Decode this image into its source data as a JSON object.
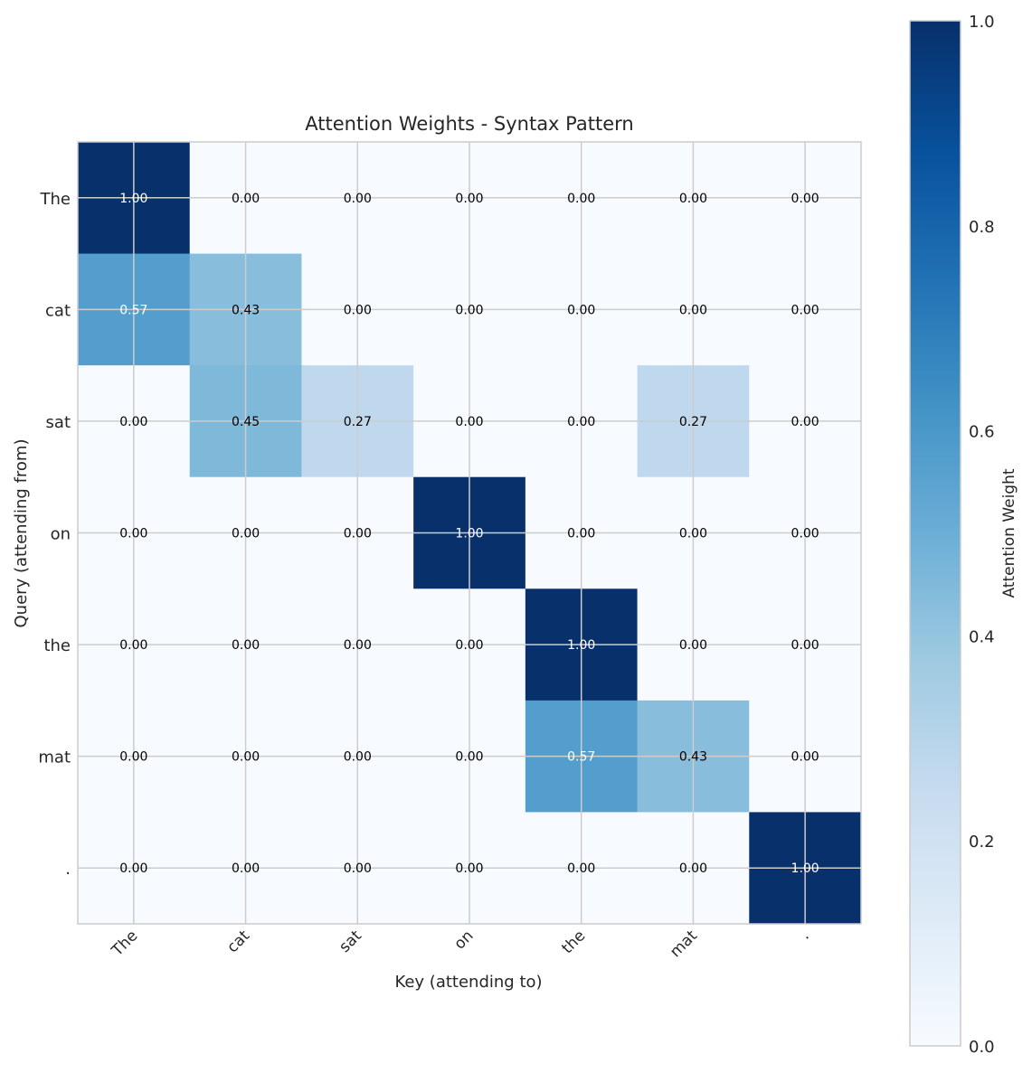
{
  "chart_data": {
    "type": "heatmap",
    "title": "Attention Weights - Syntax Pattern",
    "xlabel": "Key (attending to)",
    "ylabel": "Query (attending from)",
    "x_categories": [
      "The",
      "cat",
      "sat",
      "on",
      "the",
      "mat",
      "."
    ],
    "y_categories": [
      "The",
      "cat",
      "sat",
      "on",
      "the",
      "mat",
      "."
    ],
    "values": [
      [
        1.0,
        0.0,
        0.0,
        0.0,
        0.0,
        0.0,
        0.0
      ],
      [
        0.57,
        0.43,
        0.0,
        0.0,
        0.0,
        0.0,
        0.0
      ],
      [
        0.0,
        0.45,
        0.27,
        0.0,
        0.0,
        0.27,
        0.0
      ],
      [
        0.0,
        0.0,
        0.0,
        1.0,
        0.0,
        0.0,
        0.0
      ],
      [
        0.0,
        0.0,
        0.0,
        0.0,
        1.0,
        0.0,
        0.0
      ],
      [
        0.0,
        0.0,
        0.0,
        0.0,
        0.57,
        0.43,
        0.0
      ],
      [
        0.0,
        0.0,
        0.0,
        0.0,
        0.0,
        0.0,
        1.0
      ]
    ],
    "value_format": "0.00",
    "colormap": "Blues",
    "vmin": 0.0,
    "vmax": 1.0,
    "colorbar": {
      "label": "Attention Weight",
      "ticks": [
        "0.0",
        "0.2",
        "0.4",
        "0.6",
        "0.8",
        "1.0"
      ],
      "placement": "right"
    },
    "grid": true
  }
}
